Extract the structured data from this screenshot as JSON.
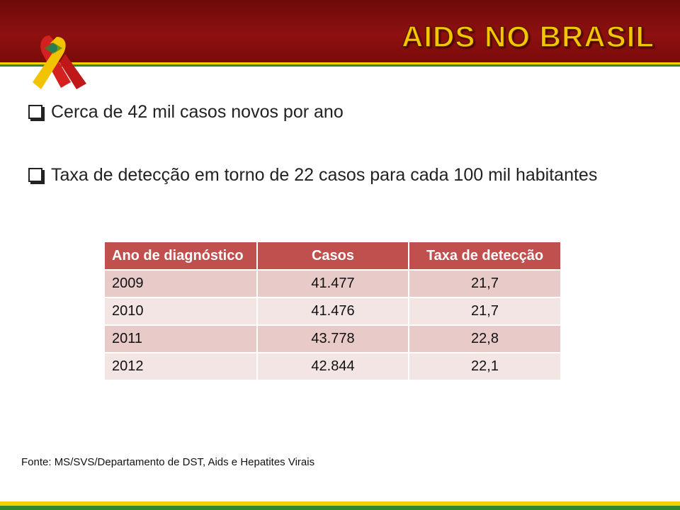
{
  "header": {
    "title": "AIDS NO BRASIL"
  },
  "bullets": [
    "Cerca de 42 mil casos novos por ano",
    "Taxa de detecção em torno de 22 casos para cada 100 mil habitantes"
  ],
  "table": {
    "columns": [
      "Ano de diagnóstico",
      "Casos",
      "Taxa de detecção"
    ],
    "rows": [
      [
        "2009",
        "41.477",
        "21,7"
      ],
      [
        "2010",
        "41.476",
        "21,7"
      ],
      [
        "2011",
        "43.778",
        "22,8"
      ],
      [
        "2012",
        "42.844",
        "22,1"
      ]
    ]
  },
  "source": "Fonte: MS/SVS/Departamento de DST, Aids e Hepatites Virais"
}
